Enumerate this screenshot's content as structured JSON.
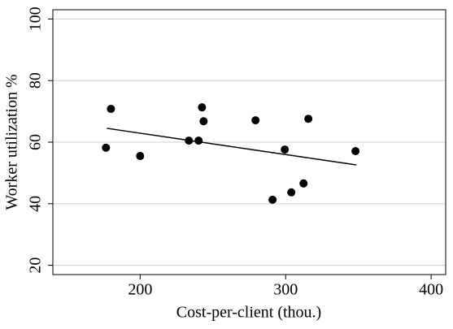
{
  "chart_data": {
    "type": "scatter",
    "x_label": "Cost-per-client (thou.)",
    "y_label": "Worker utilization %",
    "x": [
      176.5,
      179.9,
      200,
      233.5,
      240.2,
      242.5,
      243.6,
      279.3,
      291,
      299.4,
      303.9,
      312.3,
      315.6,
      348
    ],
    "values": [
      58.2,
      70.8,
      55.5,
      60.5,
      60.5,
      71.3,
      66.8,
      67.1,
      41.3,
      57.6,
      43.7,
      46.6,
      67.6,
      57.1
    ],
    "color": "#000000",
    "trend_line": {
      "x": [
        177.1,
        348.6
      ],
      "values": [
        64.5,
        52.6
      ],
      "color": "#000000"
    },
    "xlim": [
      140,
      410
    ],
    "ylim": [
      17,
      103
    ],
    "xticks": [
      200,
      300,
      400
    ],
    "yticks": [
      20,
      40,
      60,
      80,
      100
    ],
    "grid": true
  }
}
